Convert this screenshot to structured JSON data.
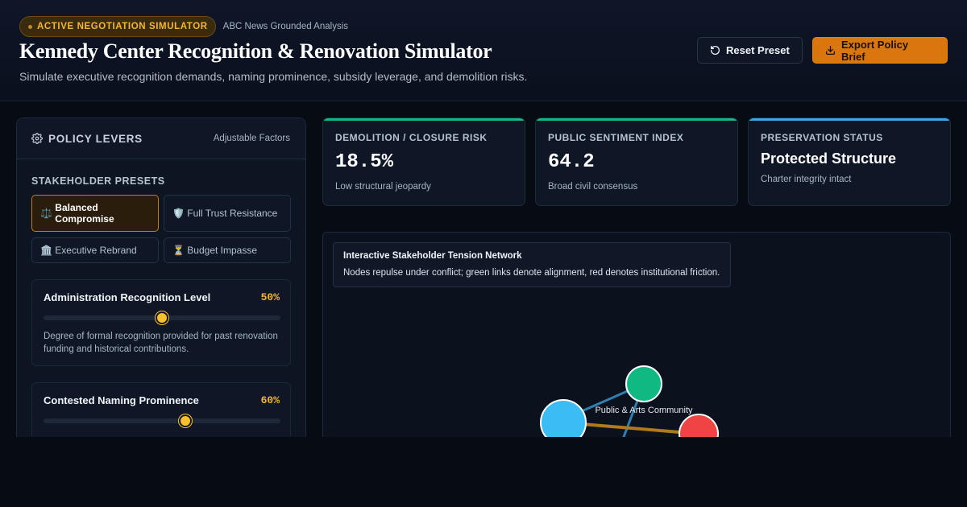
{
  "header": {
    "badge": "ACTIVE NEGOTIATION SIMULATOR",
    "source": "ABC News Grounded Analysis",
    "title": "Kennedy Center Recognition & Renovation Simulator",
    "subtitle": "Simulate executive recognition demands, naming prominence, subsidy leverage, and demolition risks.",
    "reset_label": "Reset Preset",
    "export_label": "Export Policy Brief"
  },
  "panel": {
    "title": "POLICY LEVERS",
    "aux": "Adjustable Factors",
    "presets_label": "STAKEHOLDER PRESETS",
    "presets": [
      {
        "icon": "⚖️",
        "label": "Balanced Compromise",
        "active": true
      },
      {
        "icon": "🛡️",
        "label": "Full Trust Resistance",
        "active": false
      },
      {
        "icon": "🏛️",
        "label": "Executive Rebrand",
        "active": false
      },
      {
        "icon": "⏳",
        "label": "Budget Impasse",
        "active": false
      }
    ],
    "sliders": [
      {
        "label": "Administration Recognition Level",
        "value_text": "50%",
        "value": 50,
        "description": "Degree of formal recognition provided for past renovation funding and historical contributions."
      },
      {
        "label": "Contested Naming Prominence",
        "value_text": "60%",
        "value": 60,
        "description": ""
      }
    ]
  },
  "metrics": [
    {
      "label": "DEMOLITION / CLOSURE RISK",
      "value": "18.5%",
      "note": "Low structural jeopardy",
      "accent": "#10b981"
    },
    {
      "label": "PUBLIC SENTIMENT INDEX",
      "value": "64.2",
      "note": "Broad civil consensus",
      "accent": "#10b981"
    },
    {
      "label": "PRESERVATION STATUS",
      "status": "Protected Structure",
      "note": "Charter integrity intact",
      "accent": "#3ba7e8"
    }
  ],
  "network": {
    "title": "Interactive Stakeholder Tension Network",
    "description": "Nodes repulse under conflict; green links denote alignment, red denotes institutional friction.",
    "node_label": "Public & Arts Community",
    "colors": {
      "alignment": "#2f7fb0",
      "friction": "#b07a1c",
      "node_a": "#3bbcf5",
      "node_b": "#10b981",
      "node_c": "#ef4444"
    }
  }
}
